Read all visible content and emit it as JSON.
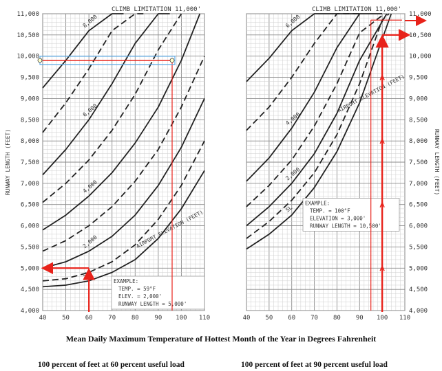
{
  "caption": "Mean Daily Maximum Temperature of Hottest Month of the Year in Degrees Fahrenheit",
  "subcaptions": [
    "100 percent of feet at 60 percent useful load",
    "100 percent of feet at 90 percent useful load"
  ],
  "chart_data": [
    {
      "type": "line",
      "title": "CLIMB LIMITATION 11,000'",
      "ylabel": "RUNWAY LENGTH (FEET)",
      "xlabel": "",
      "xlim": [
        40,
        110
      ],
      "ylim": [
        4000,
        11000
      ],
      "x_ticks": [
        "40",
        "50",
        "60",
        "70",
        "80",
        "90",
        "100",
        "110"
      ],
      "y_ticks": [
        "4,000",
        "4,500",
        "5,000",
        "5,500",
        "6,000",
        "6,500",
        "7,000",
        "7,500",
        "8,000",
        "8,500",
        "9,000",
        "9,500",
        "10,000",
        "10,500",
        "11,000"
      ],
      "grid": true,
      "series": [
        {
          "name": "SL",
          "dashed": false,
          "x": [
            40,
            50,
            60,
            70,
            80,
            90,
            100,
            110
          ],
          "y": [
            4560,
            4600,
            4700,
            4900,
            5200,
            5700,
            6400,
            7300
          ]
        },
        {
          "name": "",
          "dashed": true,
          "x": [
            40,
            50,
            60,
            70,
            80,
            90,
            100,
            110
          ],
          "y": [
            4700,
            4750,
            4900,
            5150,
            5550,
            6150,
            6950,
            8000
          ]
        },
        {
          "name": "2,000",
          "dashed": false,
          "x": [
            40,
            50,
            60,
            70,
            80,
            90,
            100,
            110
          ],
          "y": [
            5000,
            5150,
            5400,
            5750,
            6250,
            6950,
            7850,
            9000
          ]
        },
        {
          "name": "",
          "dashed": true,
          "x": [
            40,
            50,
            60,
            70,
            80,
            90,
            100,
            110
          ],
          "y": [
            5400,
            5650,
            6000,
            6450,
            7050,
            7800,
            8800,
            10000
          ]
        },
        {
          "name": "4,000",
          "dashed": false,
          "x": [
            40,
            50,
            60,
            70,
            80,
            90,
            100,
            108
          ],
          "y": [
            5900,
            6250,
            6700,
            7250,
            7950,
            8800,
            9900,
            11000
          ]
        },
        {
          "name": "",
          "dashed": true,
          "x": [
            40,
            50,
            60,
            70,
            80,
            90,
            100
          ],
          "y": [
            6550,
            7000,
            7550,
            8250,
            9100,
            10150,
            11000
          ]
        },
        {
          "name": "6,000",
          "dashed": false,
          "x": [
            40,
            50,
            60,
            70,
            80,
            90,
            95
          ],
          "y": [
            7200,
            7800,
            8500,
            9350,
            10300,
            11000,
            11000
          ]
        },
        {
          "name": "",
          "dashed": true,
          "x": [
            40,
            50,
            60,
            70,
            80,
            85
          ],
          "y": [
            8200,
            8900,
            9700,
            10600,
            11000,
            11000
          ]
        },
        {
          "name": "8,000",
          "dashed": false,
          "x": [
            40,
            50,
            60,
            70,
            75
          ],
          "y": [
            9250,
            9900,
            10600,
            11000,
            11000
          ]
        }
      ],
      "annotations": {
        "airport_elevation_label": "AIRPORT ELEVATION (FEET)",
        "example": {
          "title": "EXAMPLE:",
          "temp": "TEMP. = 59°F",
          "elev": "ELEV. = 2,000'",
          "runway": "RUNWAY LENGTH = 5,000'"
        },
        "markers": {
          "temp_60_runway": 5000,
          "temp_96_runway": 9900
        }
      }
    },
    {
      "type": "line",
      "title": "CLIMB LIMITATION 11,000'",
      "ylabel": "RUNWAY LENGTH (FEET)",
      "xlabel": "",
      "xlim": [
        40,
        110
      ],
      "ylim": [
        4000,
        11000
      ],
      "x_ticks": [
        "40",
        "50",
        "60",
        "70",
        "80",
        "90",
        "100",
        "110"
      ],
      "y_ticks": [
        "4,000",
        "4,500",
        "5,000",
        "5,500",
        "6,000",
        "6,500",
        "7,000",
        "7,500",
        "8,000",
        "8,500",
        "9,000",
        "9,500",
        "10,000",
        "10,500",
        "11,000"
      ],
      "grid": true,
      "series": [
        {
          "name": "SL",
          "dashed": false,
          "x": [
            40,
            50,
            60,
            70,
            80,
            90,
            100,
            104
          ],
          "y": [
            5450,
            5800,
            6250,
            6900,
            7750,
            8900,
            10400,
            11000
          ]
        },
        {
          "name": "",
          "dashed": true,
          "x": [
            40,
            50,
            60,
            70,
            80,
            90,
            100,
            103
          ],
          "y": [
            5700,
            6100,
            6600,
            7250,
            8150,
            9350,
            10850,
            11000
          ]
        },
        {
          "name": "2,000",
          "dashed": false,
          "x": [
            40,
            50,
            60,
            70,
            80,
            90,
            102
          ],
          "y": [
            6000,
            6450,
            7000,
            7700,
            8650,
            9900,
            11000
          ]
        },
        {
          "name": "",
          "dashed": true,
          "x": [
            40,
            50,
            60,
            70,
            80,
            90,
            101
          ],
          "y": [
            6450,
            6950,
            7550,
            8350,
            9350,
            10550,
            11000
          ]
        },
        {
          "name": "4,000",
          "dashed": false,
          "x": [
            40,
            50,
            60,
            70,
            80,
            90,
            100
          ],
          "y": [
            7050,
            7600,
            8300,
            9150,
            10200,
            11000,
            11000
          ]
        },
        {
          "name": "",
          "dashed": true,
          "x": [
            40,
            50,
            60,
            70,
            80,
            90
          ],
          "y": [
            8250,
            8800,
            9500,
            10300,
            11000,
            11000
          ]
        },
        {
          "name": "6,000",
          "dashed": false,
          "x": [
            40,
            50,
            60,
            70,
            80,
            90
          ],
          "y": [
            9400,
            9950,
            10600,
            11000,
            11000,
            11000
          ]
        }
      ],
      "annotations": {
        "airport_elevation_label": "AIRPORT ELEVATION (FEET)",
        "example": {
          "title": "EXAMPLE:",
          "temp": "TEMP. = 100°F",
          "elev": "ELEVATION = 3,000'",
          "runway": "RUNWAY LENGTH = 10,500'"
        },
        "markers": {
          "temp_100_runway": 10500,
          "temp_95_runway": 10800
        }
      }
    }
  ]
}
